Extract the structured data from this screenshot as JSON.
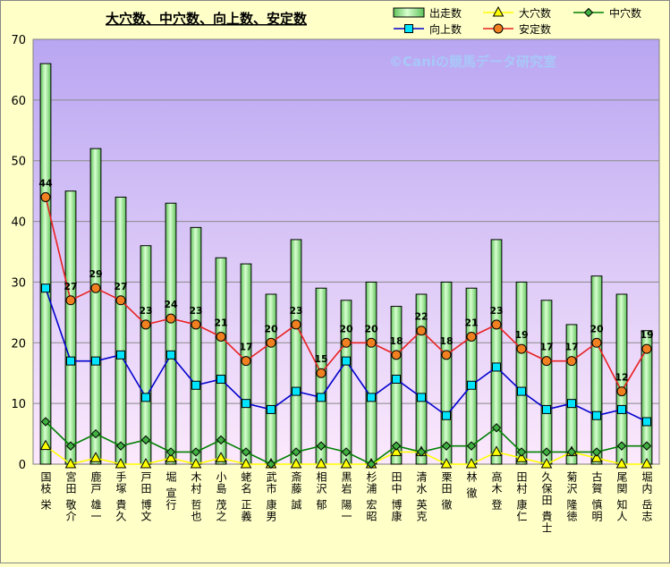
{
  "chart_data": {
    "type": "bar",
    "title": "大穴数、中穴数、向上数、安定数",
    "watermark": "©Caniの競馬データ研究室",
    "ylim": [
      0,
      70
    ],
    "yticks": [
      0,
      10,
      20,
      30,
      40,
      50,
      60,
      70
    ],
    "grid": true,
    "legend_position": "top-right",
    "categories": [
      "国枝 栄",
      "宮田 敬介",
      "鹿戸 雄一",
      "手塚 貴久",
      "戸田 博文",
      "堀 宣行",
      "木村 哲也",
      "小島 茂之",
      "蛯名 正義",
      "武市 康男",
      "斎藤 誠",
      "相沢 郁",
      "黒岩 陽一",
      "杉浦 宏昭",
      "田中 博康",
      "清水 英克",
      "栗田 徹",
      "林 徹",
      "高木 登",
      "田村 康仁",
      "久保田 貴士",
      "菊沢 隆徳",
      "古賀 慎明",
      "尾関 知人",
      "堀内 岳志"
    ],
    "series": [
      {
        "name": "出走数",
        "kind": "bar",
        "color": "#B8F0B0",
        "values": [
          66,
          45,
          52,
          44,
          36,
          43,
          39,
          34,
          33,
          28,
          37,
          29,
          27,
          30,
          26,
          28,
          30,
          29,
          37,
          30,
          27,
          23,
          31,
          28,
          22
        ]
      },
      {
        "name": "大穴数",
        "kind": "line",
        "color": "#FFFF00",
        "values": [
          3,
          0,
          1,
          0,
          0,
          1,
          0,
          1,
          0,
          0,
          0,
          0,
          0,
          0,
          2,
          2,
          0,
          0,
          2,
          1,
          0,
          2,
          1,
          0,
          0
        ]
      },
      {
        "name": "中穴数",
        "kind": "line",
        "color": "#008000",
        "values": [
          7,
          3,
          5,
          3,
          4,
          2,
          2,
          4,
          2,
          0,
          2,
          3,
          2,
          0,
          3,
          2,
          3,
          3,
          6,
          2,
          2,
          2,
          2,
          3,
          3
        ]
      },
      {
        "name": "向上数",
        "kind": "line",
        "color": "#0000CC",
        "values": [
          29,
          17,
          17,
          18,
          11,
          18,
          13,
          14,
          10,
          9,
          12,
          11,
          17,
          11,
          14,
          11,
          8,
          13,
          16,
          12,
          9,
          10,
          8,
          9,
          7
        ]
      },
      {
        "name": "安定数",
        "kind": "line",
        "color": "#E82020",
        "values": [
          44,
          27,
          29,
          27,
          23,
          24,
          23,
          21,
          17,
          20,
          23,
          15,
          20,
          20,
          18,
          22,
          18,
          21,
          23,
          19,
          17,
          17,
          20,
          12,
          19
        ]
      }
    ]
  }
}
